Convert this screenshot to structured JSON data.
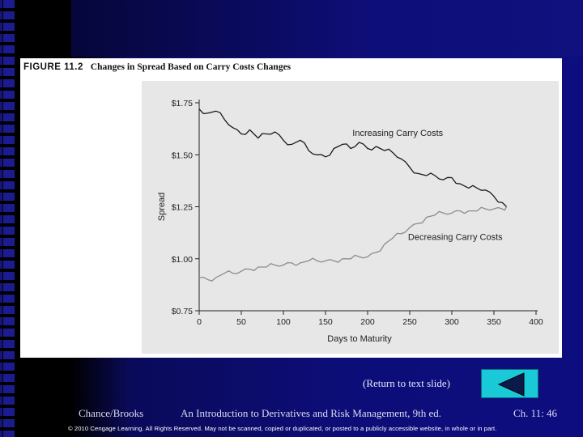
{
  "figure": {
    "number_label": "FIGURE 11.2",
    "title": "Changes in Spread Based on Carry Costs Changes"
  },
  "chart_data": {
    "type": "line",
    "xlabel": "Days to Maturity",
    "ylabel": "Spread",
    "xlim": [
      0,
      400
    ],
    "ylim": [
      0.75,
      1.75
    ],
    "x_ticks": [
      0,
      50,
      100,
      150,
      200,
      250,
      300,
      350,
      400
    ],
    "x_tick_labels": [
      "0",
      "50",
      "100",
      "150",
      "200",
      "250",
      "300",
      "350",
      "400"
    ],
    "y_ticks": [
      0.75,
      1.0,
      1.25,
      1.5,
      1.75
    ],
    "y_tick_labels": [
      "$0.75",
      "$1.00",
      "$1.25",
      "$1.50",
      "$1.75"
    ],
    "grid": false,
    "series": [
      {
        "name": "Increasing Carry Costs",
        "color": "#1a1a1a",
        "x": [
          0,
          10,
          20,
          30,
          40,
          50,
          60,
          70,
          80,
          90,
          100,
          110,
          120,
          130,
          140,
          150,
          160,
          170,
          180,
          190,
          200,
          210,
          220,
          230,
          240,
          250,
          260,
          270,
          280,
          290,
          300,
          310,
          320,
          330,
          340,
          350,
          360,
          365
        ],
        "values": [
          1.72,
          1.7,
          1.71,
          1.67,
          1.63,
          1.6,
          1.62,
          1.58,
          1.6,
          1.61,
          1.57,
          1.55,
          1.57,
          1.52,
          1.5,
          1.49,
          1.53,
          1.55,
          1.53,
          1.56,
          1.53,
          1.54,
          1.52,
          1.51,
          1.48,
          1.44,
          1.41,
          1.4,
          1.4,
          1.38,
          1.39,
          1.36,
          1.34,
          1.34,
          1.33,
          1.3,
          1.27,
          1.25
        ]
      },
      {
        "name": "Decreasing Carry Costs",
        "color": "#8c8c8c",
        "x": [
          0,
          10,
          20,
          30,
          40,
          50,
          60,
          70,
          80,
          90,
          100,
          110,
          120,
          130,
          140,
          150,
          160,
          170,
          180,
          190,
          200,
          210,
          220,
          230,
          240,
          250,
          260,
          270,
          280,
          290,
          300,
          310,
          320,
          330,
          340,
          350,
          360,
          365
        ],
        "values": [
          0.91,
          0.9,
          0.91,
          0.93,
          0.93,
          0.94,
          0.95,
          0.96,
          0.96,
          0.97,
          0.97,
          0.98,
          0.98,
          0.99,
          0.99,
          0.99,
          0.99,
          1.0,
          1.0,
          1.01,
          1.01,
          1.03,
          1.07,
          1.1,
          1.12,
          1.15,
          1.17,
          1.2,
          1.21,
          1.22,
          1.22,
          1.23,
          1.23,
          1.23,
          1.24,
          1.24,
          1.24,
          1.25
        ]
      }
    ]
  },
  "nav": {
    "return_label": "(Return to text slide)"
  },
  "footer": {
    "author": "Chance/Brooks",
    "book": "An Introduction to Derivatives and Risk Management, 9th ed.",
    "page": "Ch. 11: 46",
    "copyright": "© 2010 Cengage Learning. All Rights Reserved. May not be scanned, copied or duplicated, or posted to a publicly accessible website, in whole or in part."
  }
}
